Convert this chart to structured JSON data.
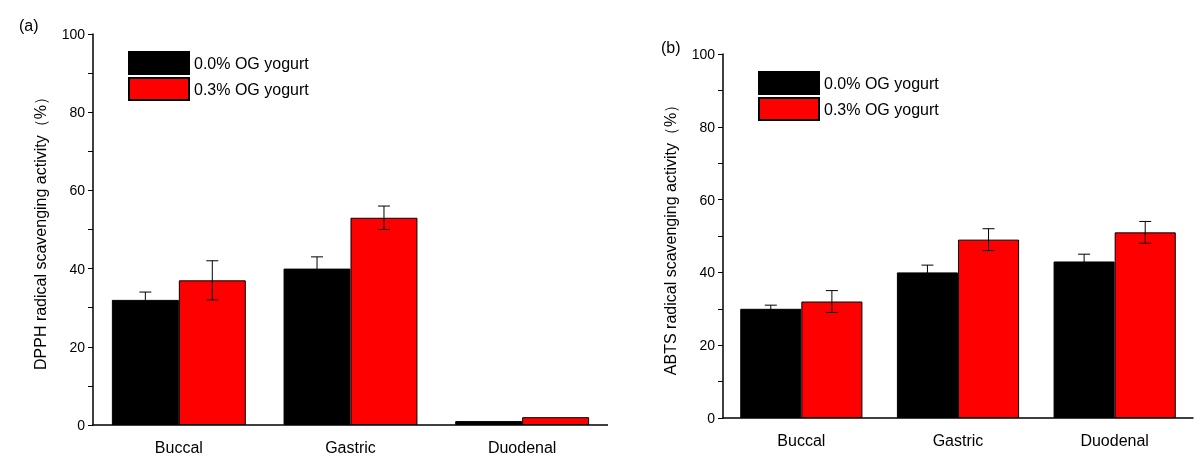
{
  "chart_data": [
    {
      "type": "bar",
      "title": "(a)",
      "ylabel": "DPPH radical scavenging activity（%）",
      "categories": [
        "Buccal",
        "Gastric",
        "Duodenal"
      ],
      "series": [
        {
          "name": "0.0% OG yogurt",
          "color": "#000000",
          "values": [
            32,
            40,
            1
          ],
          "errors": [
            2,
            3,
            null
          ]
        },
        {
          "name": "0.3% OG yogurt",
          "color": "#ff0000",
          "values": [
            37,
            53,
            2
          ],
          "errors": [
            5,
            3,
            null
          ]
        }
      ],
      "ylim": [
        0,
        100
      ],
      "yticks": [
        0,
        {
          "value": 10,
          "label": null
        },
        20,
        {
          "value": 30,
          "label": null
        },
        40,
        {
          "value": 50,
          "label": null
        },
        60,
        {
          "value": 70,
          "label": null
        },
        80,
        {
          "value": 90,
          "label": null
        },
        100
      ],
      "legend": "top left",
      "grid": false
    },
    {
      "type": "bar",
      "title": "(b)",
      "ylabel": "ABTS radical scavenging activity（%）",
      "categories": [
        "Buccal",
        "Gastric",
        "Duodenal"
      ],
      "series": [
        {
          "name": "0.0% OG yogurt",
          "color": "#000000",
          "values": [
            30,
            40,
            43
          ],
          "errors": [
            1,
            2,
            2
          ]
        },
        {
          "name": "0.3% OG yogurt",
          "color": "#ff0000",
          "values": [
            32,
            49,
            51
          ],
          "errors": [
            3,
            3,
            3
          ]
        }
      ],
      "ylim": [
        0,
        100
      ],
      "yticks": [
        0,
        {
          "value": 10,
          "label": null
        },
        20,
        {
          "value": 30,
          "label": null
        },
        40,
        {
          "value": 50,
          "label": null
        },
        60,
        {
          "value": 70,
          "label": null
        },
        80,
        {
          "value": 90,
          "label": null
        },
        100
      ],
      "legend": "top left",
      "grid": false
    }
  ]
}
